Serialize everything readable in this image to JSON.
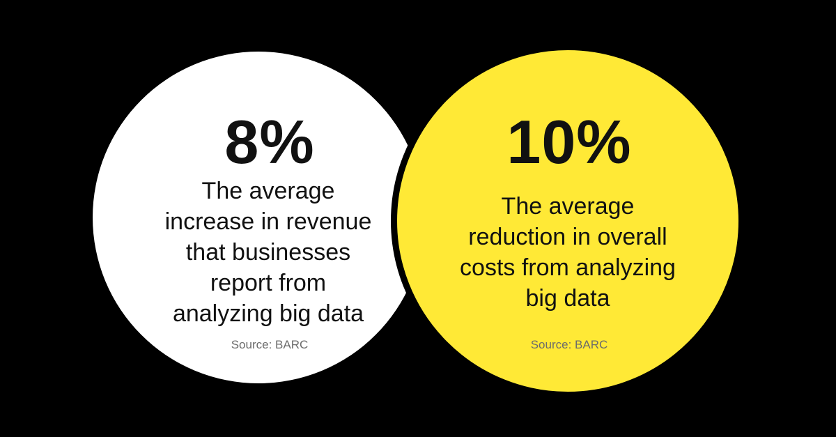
{
  "stats": [
    {
      "value": "8%",
      "lines": [
        "The average",
        "increase in revenue",
        "that businesses",
        "report from",
        "analyzing big data"
      ],
      "source": "Source: BARC"
    },
    {
      "value": "10%",
      "lines": [
        "The average",
        "reduction in overall",
        "costs from analyzing",
        "big data"
      ],
      "source": "Source: BARC"
    }
  ],
  "colors": {
    "background": "#000000",
    "left_circle": "#ffffff",
    "right_circle": "#ffe936",
    "text": "#111111",
    "source_text": "#6b6b6b"
  }
}
